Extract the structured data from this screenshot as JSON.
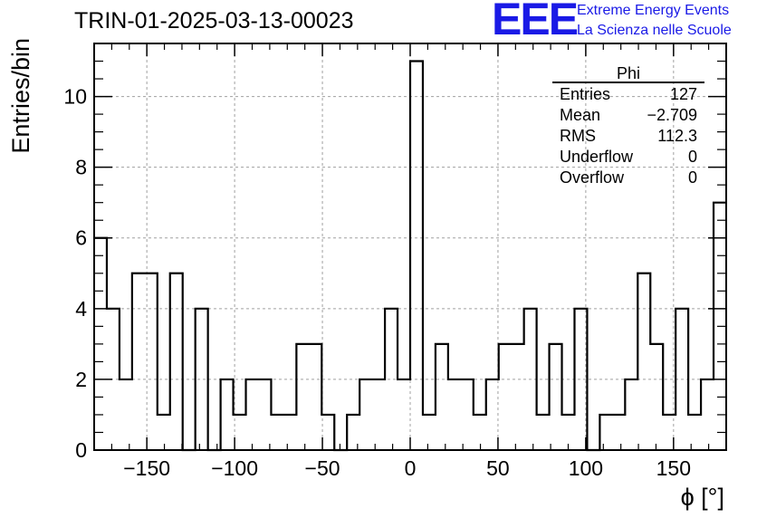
{
  "header": {
    "title": "TRIN-01-2025-03-13-00023",
    "logo_text": "EEE",
    "brand_line1": "Extreme Energy Events",
    "brand_line2": "La Scienza nelle Scuole",
    "brand_color": "#1a1ae6"
  },
  "stats_box": {
    "name": "Phi",
    "rows": [
      {
        "label": "Entries",
        "value": "127"
      },
      {
        "label": "Mean",
        "value": "−2.709"
      },
      {
        "label": "RMS",
        "value": "112.3"
      },
      {
        "label": "Underflow",
        "value": "0"
      },
      {
        "label": "Overflow",
        "value": "0"
      }
    ]
  },
  "chart_data": {
    "type": "histogram",
    "xlabel": "ϕ [°]",
    "ylabel": "Entries/bin",
    "xlim": [
      -180,
      180
    ],
    "ylim": [
      0,
      11.5
    ],
    "bin_width": 7.2,
    "bin_start": -180,
    "values": [
      6,
      4,
      2,
      5,
      5,
      1,
      5,
      0,
      4,
      0,
      2,
      1,
      2,
      2,
      1,
      1,
      3,
      3,
      1,
      0,
      1,
      2,
      2,
      4,
      2,
      11,
      1,
      3,
      2,
      2,
      1,
      2,
      3,
      3,
      4,
      1,
      3,
      1,
      4,
      0,
      1,
      1,
      2,
      5,
      3,
      1,
      4,
      1,
      2,
      7
    ],
    "xticks": [
      -150,
      -100,
      -50,
      0,
      50,
      100,
      150
    ],
    "xtick_labels": [
      "−150",
      "−100",
      "−50",
      "0",
      "50",
      "100",
      "150"
    ],
    "yticks": [
      0,
      2,
      4,
      6,
      8,
      10
    ],
    "ytick_labels": [
      "0",
      "2",
      "4",
      "6",
      "8",
      "10"
    ],
    "grid": true,
    "line_color": "#000000",
    "grid_color": "#a0a0a0"
  }
}
